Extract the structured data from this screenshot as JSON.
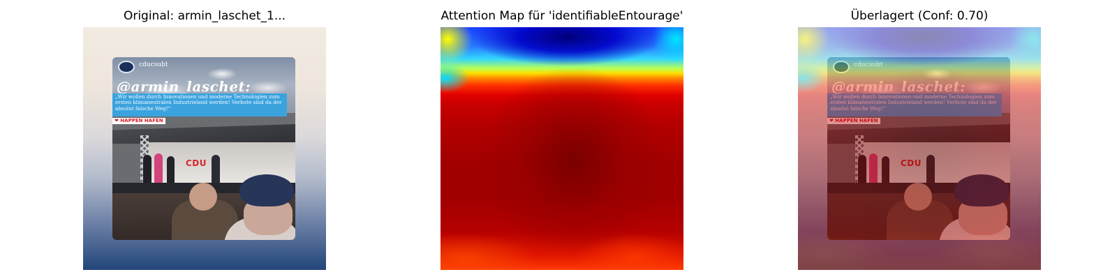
{
  "panels": {
    "original": {
      "title": "Original: armin_laschet_1..."
    },
    "attention": {
      "title": "Attention Map für 'identifiableEntourage'"
    },
    "overlay": {
      "title": "Überlagert (Conf: 0.70)"
    }
  },
  "photo": {
    "account": "cducsubt",
    "handle": "@armin_laschet:",
    "quote": "„Wir wollen durch Innovationen und moderne Technologien zum ersten klimaneutralen Industrieland werden! Verbote sind da der absolut falsche Weg!“",
    "tag": "❤ HAPPEN HAFEN",
    "stage_sign": "CDU"
  },
  "colors": {
    "quote_box": "#3aa3de",
    "party_red": "#d3272b"
  }
}
